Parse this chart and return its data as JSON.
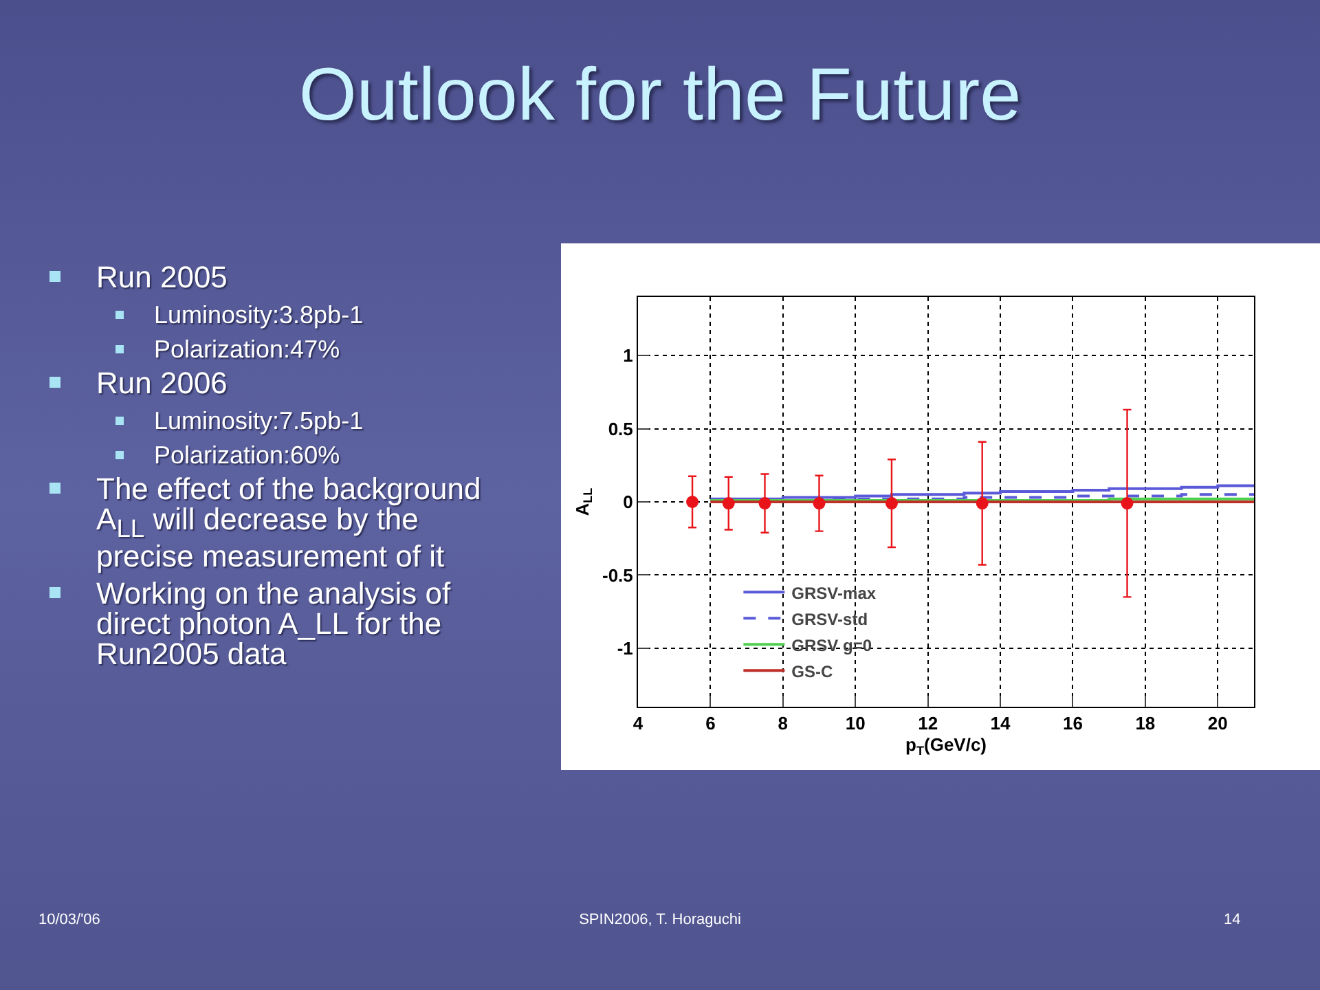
{
  "chart_data": {
    "type": "scatter",
    "title": "Outlook for the Future",
    "xlabel": "p$_{T}$(GeV/c)",
    "ylabel": "A$_{LL}$",
    "xlim": [
      4,
      21
    ],
    "xticks": [
      4,
      6,
      8,
      10,
      12,
      14,
      16,
      18,
      20
    ],
    "ylim": [
      -1.4,
      1.4
    ],
    "yticks": [
      -1,
      -0.5,
      0,
      0.5,
      1
    ],
    "grid": true,
    "legend": "bottom left",
    "marker": "circle",
    "series": [
      {
        "name": "GRSV-max",
        "type": "step",
        "marker": "none",
        "color": "#5a5ad8",
        "x": [
          6,
          7,
          8,
          9,
          10,
          11,
          12,
          13,
          14,
          15,
          16,
          17,
          18,
          19,
          20,
          21
        ],
        "values": [
          0.02,
          0.02,
          0.03,
          0.03,
          0.04,
          0.05,
          0.05,
          0.06,
          0.07,
          0.07,
          0.08,
          0.09,
          0.09,
          0.1,
          0.11,
          0.11
        ]
      },
      {
        "name": "GRSV-std",
        "type": "step",
        "marker": "none",
        "line_style": "dashed",
        "color": "#5a5ad8",
        "x": [
          6,
          7,
          8,
          9,
          10,
          11,
          12,
          13,
          14,
          15,
          16,
          17,
          18,
          19,
          20,
          21
        ],
        "values": [
          0.01,
          0.01,
          0.01,
          0.02,
          0.02,
          0.02,
          0.02,
          0.03,
          0.03,
          0.03,
          0.04,
          0.04,
          0.04,
          0.05,
          0.05,
          0.05
        ]
      },
      {
        "name": "GRSV g=0",
        "type": "step",
        "marker": "none",
        "color": "#4fcf4f",
        "x": [
          6,
          7,
          8,
          9,
          10,
          11,
          12,
          13,
          14,
          15,
          16,
          17,
          18,
          19,
          20,
          21
        ],
        "values": [
          0.01,
          0.01,
          0.01,
          0.01,
          0.01,
          0.01,
          0.01,
          0.01,
          0.01,
          0.01,
          0.01,
          0.02,
          0.02,
          0.02,
          0.02,
          0.02
        ]
      },
      {
        "name": "GS-C",
        "type": "step",
        "marker": "none",
        "color": "#c0302a",
        "x": [
          6,
          7,
          8,
          9,
          10,
          11,
          12,
          13,
          14,
          15,
          16,
          17,
          18,
          19,
          20,
          21
        ],
        "values": [
          0,
          0,
          0,
          0,
          0,
          0,
          0,
          0,
          0,
          0,
          0,
          0,
          0,
          0,
          0,
          0
        ]
      },
      {
        "color": "#e8141a",
        "x": [
          5.5,
          6.5,
          7.5,
          9,
          11,
          13.5,
          17.5
        ],
        "values": [
          0,
          -0.01,
          -0.01,
          -0.01,
          -0.01,
          -0.01,
          -0.01
        ],
        "errors": [
          0.175,
          0.18,
          0.2,
          0.19,
          0.3,
          0.42,
          0.64
        ]
      }
    ],
    "annotations": [
      "Run 2005",
      "Luminosity:3.8pb-1",
      "Polarization:47%",
      "Run 2006",
      "Luminosity:7.5pb-1",
      "Polarization:60%",
      "The effect of the background A$_{LL}$ will decrease by the precise measurement of it",
      "Working on the analysis of direct photon A_LL for the Run2005 data",
      "10/03/'06",
      "SPIN2006, T. Horaguchi",
      "14"
    ]
  }
}
